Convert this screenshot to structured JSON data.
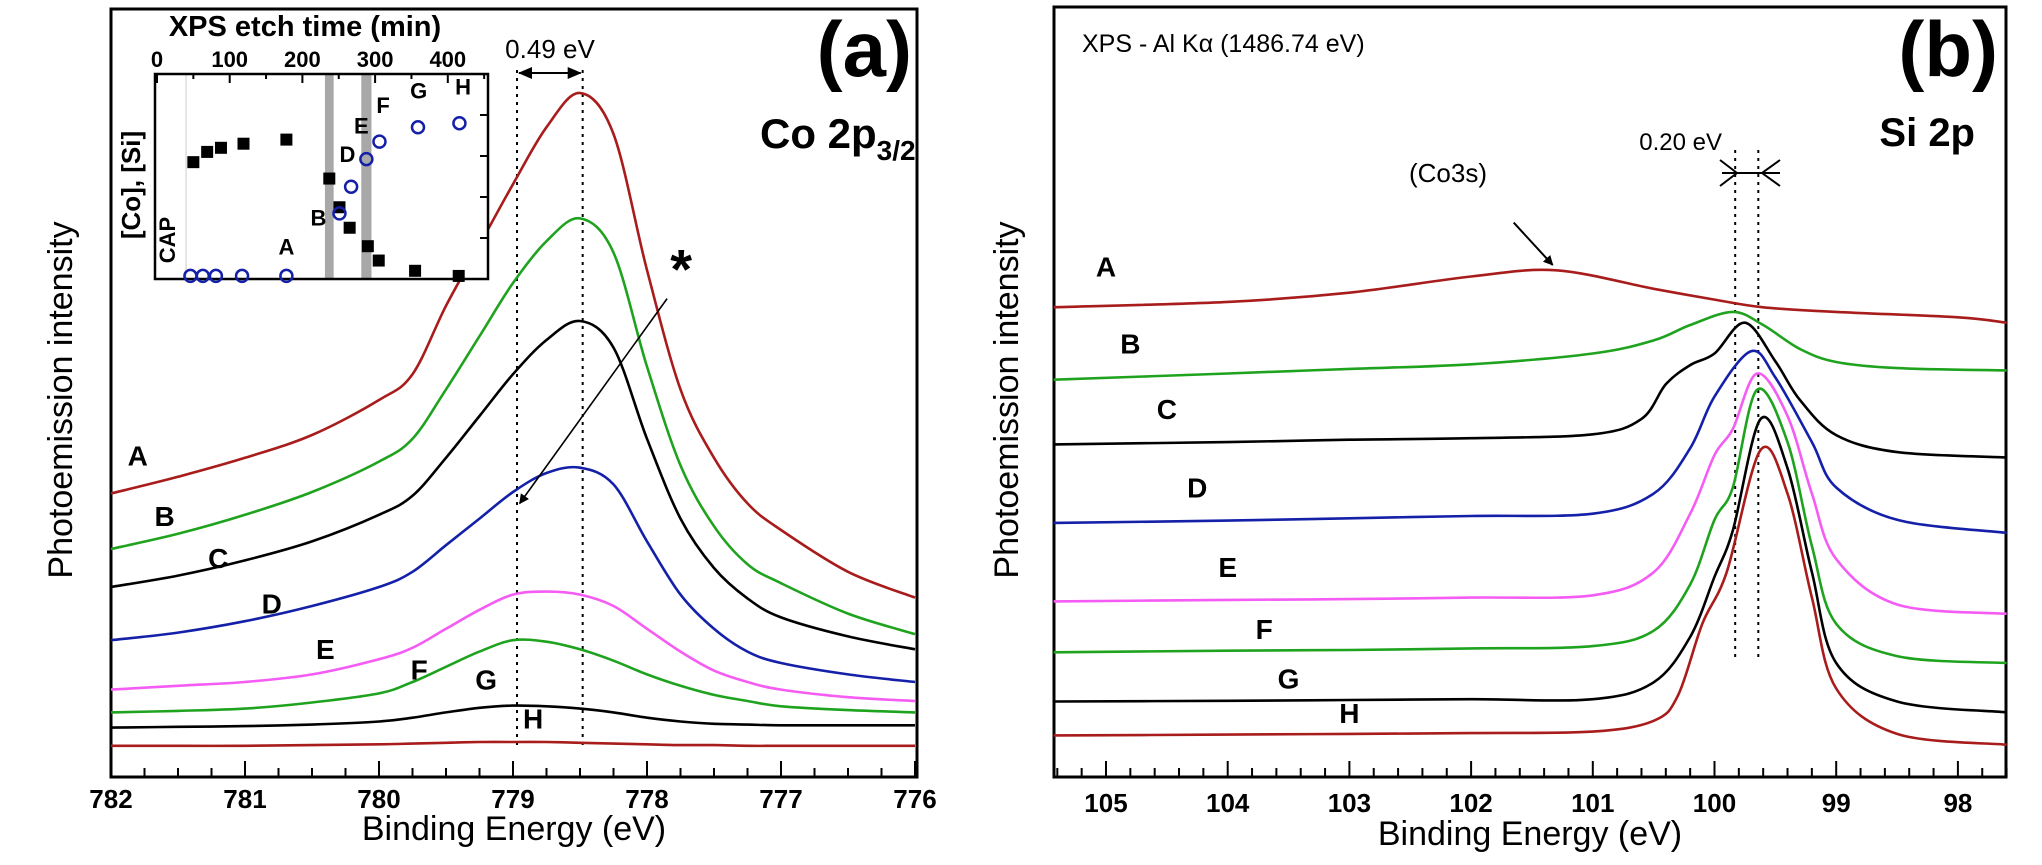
{
  "chart_data": [
    {
      "panel_label": "(a)",
      "type": "line",
      "title": "Co 2p",
      "title_sub": "3/2",
      "xlabel": "Binding Energy (eV)",
      "ylabel": "Photoemission intensity",
      "xlim": [
        782,
        776
      ],
      "x_reversed": true,
      "ylim": [
        0,
        101
      ],
      "xticks": [
        "782",
        "781",
        "780",
        "779",
        "778",
        "777",
        "776"
      ],
      "grid": false,
      "x": [
        782,
        781.5,
        781,
        780.5,
        780,
        779.75,
        779.5,
        779.25,
        779,
        778.75,
        778.5,
        778.25,
        778,
        777.75,
        777.5,
        777.25,
        777,
        776.5,
        776
      ],
      "series": [
        {
          "label": "A",
          "color": "#a81c1c",
          "label_pos": [
            781.8,
            41
          ],
          "values": [
            37.3,
            39.5,
            42,
            45,
            49.6,
            53,
            62,
            70,
            78,
            85.5,
            90,
            84.6,
            66.7,
            51,
            42,
            36,
            32.5,
            27,
            23.6
          ]
        },
        {
          "label": "B",
          "color": "#1fa31f",
          "label_pos": [
            781.6,
            33
          ],
          "values": [
            30,
            32,
            34.5,
            37.5,
            41.5,
            44.5,
            51,
            58,
            65,
            70.5,
            73.5,
            69,
            54,
            41,
            33,
            28,
            25.5,
            21.5,
            18.8
          ]
        },
        {
          "label": "C",
          "color": "#000000",
          "label_pos": [
            781.2,
            27.5
          ],
          "values": [
            25,
            26.5,
            28.5,
            31,
            34.5,
            37,
            42,
            47.5,
            53,
            57.5,
            60,
            56.5,
            44.5,
            34,
            27.5,
            23.5,
            21,
            18.5,
            16.8
          ]
        },
        {
          "label": "D",
          "color": "#1420a8",
          "label_pos": [
            780.8,
            21.5
          ],
          "values": [
            18,
            19,
            20.5,
            22.5,
            25,
            27,
            30.5,
            34,
            37.5,
            40,
            40.7,
            38.5,
            31,
            24,
            19.5,
            16.5,
            15,
            13.5,
            12.5
          ]
        },
        {
          "label": "E",
          "color": "#f45cf4",
          "label_pos": [
            780.4,
            15.5
          ],
          "values": [
            11.5,
            12,
            12.5,
            13.5,
            15.5,
            17,
            19.5,
            22,
            24,
            24.4,
            24,
            22.5,
            19.5,
            16.5,
            14,
            12.5,
            11.5,
            10.5,
            10
          ]
        },
        {
          "label": "F",
          "color": "#1fa31f",
          "label_pos": [
            779.7,
            12.8
          ],
          "values": [
            8.5,
            8.7,
            9,
            9.8,
            11,
            12.5,
            14.5,
            16.5,
            18,
            17.8,
            16.8,
            15.3,
            13.5,
            12,
            10.8,
            10,
            9.3,
            8.8,
            8.5
          ]
        },
        {
          "label": "G",
          "color": "#000000",
          "label_pos": [
            779.2,
            11.5
          ],
          "values": [
            6.5,
            6.6,
            6.7,
            6.9,
            7.3,
            7.8,
            8.5,
            9.1,
            9.4,
            9.3,
            9,
            8.5,
            7.8,
            7.3,
            7,
            6.9,
            6.8,
            6.8,
            6.8
          ]
        },
        {
          "label": "H",
          "color": "#a81c1c",
          "label_pos": [
            778.85,
            6.4
          ],
          "values": [
            4.1,
            4.1,
            4.1,
            4.2,
            4.3,
            4.4,
            4.5,
            4.6,
            4.6,
            4.6,
            4.5,
            4.4,
            4.3,
            4.2,
            4.2,
            4.1,
            4.1,
            4.1,
            4.1
          ]
        }
      ],
      "reference_lines": [
        778.97,
        778.48
      ],
      "annotations": {
        "shift_label": "0.49 eV",
        "star_label": "*",
        "star_arrow": {
          "from": [
            777.85,
            64
          ],
          "to": [
            778.95,
            36
          ]
        }
      },
      "inset": {
        "type": "scatter",
        "xlabel": "XPS etch time (min)",
        "ylabel": "[Co], [Si]",
        "xlim": [
          0,
          455
        ],
        "ylim": [
          0,
          1
        ],
        "xticks": [
          "0",
          "100",
          "200",
          "300",
          "400"
        ],
        "region_label": "CAP",
        "cap_boundary": 40,
        "bands": [
          [
            231,
            243
          ],
          [
            281,
            295
          ]
        ],
        "series": [
          {
            "name": "[Co]",
            "marker": "filled-square",
            "color": "#000000",
            "x": [
              50,
              69,
              88,
              119,
              178,
              237,
              251,
              265,
              290,
              305,
              355,
              415
            ],
            "y": [
              0.57,
              0.62,
              0.64,
              0.66,
              0.68,
              0.49,
              0.35,
              0.25,
              0.16,
              0.09,
              0.04,
              0.015
            ]
          },
          {
            "name": "[Si]",
            "marker": "open-circle",
            "color": "#1420a8",
            "x": [
              46,
              63,
              81,
              117,
              178,
              251,
              267,
              288,
              306,
              359,
              416
            ],
            "y": [
              0.015,
              0.015,
              0.015,
              0.015,
              0.015,
              0.32,
              0.45,
              0.585,
              0.67,
              0.74,
              0.76
            ]
          }
        ],
        "point_labels": [
          {
            "text": "A",
            "x": 178,
            "y": 0.12
          },
          {
            "text": "B",
            "x": 222,
            "y": 0.26
          },
          {
            "text": "D",
            "x": 262,
            "y": 0.57
          },
          {
            "text": "E",
            "x": 281,
            "y": 0.71
          },
          {
            "text": "F",
            "x": 311,
            "y": 0.81
          },
          {
            "text": "G",
            "x": 360,
            "y": 0.88
          },
          {
            "text": "H",
            "x": 421,
            "y": 0.9
          }
        ]
      }
    },
    {
      "panel_label": "(b)",
      "type": "line",
      "title": "Si 2p",
      "subtitle": "XPS - Al Kα (1486.74 eV)",
      "xlabel": "Binding Energy (eV)",
      "ylabel": "Photoemission intensity",
      "xlim": [
        105.43,
        97.6
      ],
      "x_reversed": true,
      "ylim": [
        0,
        100
      ],
      "xticks": [
        "105",
        "104",
        "103",
        "102",
        "101",
        "100",
        "99",
        "98"
      ],
      "grid": false,
      "series": [
        {
          "label": "A",
          "color": "#a81c1c",
          "label_pos": [
            105.0,
            65
          ],
          "points": [
            [
              105.43,
              61
            ],
            [
              104,
              61.7
            ],
            [
              103,
              62.9
            ],
            [
              102,
              65
            ],
            [
              101.3,
              65.8
            ],
            [
              100.5,
              63.4
            ],
            [
              100,
              62
            ],
            [
              99.6,
              61
            ],
            [
              99,
              60.4
            ],
            [
              98,
              59.7
            ],
            [
              97.6,
              59
            ]
          ]
        },
        {
          "label": "B",
          "color": "#1fa31f",
          "label_pos": [
            104.8,
            55
          ],
          "points": [
            [
              105.43,
              51.6
            ],
            [
              104,
              52.4
            ],
            [
              103,
              53
            ],
            [
              102,
              53.6
            ],
            [
              101,
              55
            ],
            [
              100.5,
              56.7
            ],
            [
              100.2,
              58.7
            ],
            [
              99.85,
              60.4
            ],
            [
              99.6,
              58.7
            ],
            [
              99.3,
              55.6
            ],
            [
              99,
              53.9
            ],
            [
              98.5,
              53.1
            ],
            [
              97.6,
              52.8
            ]
          ]
        },
        {
          "label": "C",
          "color": "#000000",
          "label_pos": [
            104.5,
            46.5
          ],
          "points": [
            [
              105.43,
              43.2
            ],
            [
              104,
              43.5
            ],
            [
              103,
              43.8
            ],
            [
              102,
              44
            ],
            [
              101,
              44.5
            ],
            [
              100.6,
              46.5
            ],
            [
              100.4,
              51
            ],
            [
              100.2,
              53.5
            ],
            [
              100,
              55
            ],
            [
              99.75,
              59
            ],
            [
              99.5,
              54
            ],
            [
              99.3,
              49
            ],
            [
              99,
              44.4
            ],
            [
              98.5,
              42.2
            ],
            [
              97.6,
              41.5
            ]
          ]
        },
        {
          "label": "D",
          "color": "#1420a8",
          "label_pos": [
            104.25,
            36.3
          ],
          "points": [
            [
              105.43,
              33
            ],
            [
              104,
              33.3
            ],
            [
              103,
              33.6
            ],
            [
              102,
              33.9
            ],
            [
              101,
              34.2
            ],
            [
              100.5,
              36.8
            ],
            [
              100.2,
              42.7
            ],
            [
              100,
              49.4
            ],
            [
              99.7,
              55.3
            ],
            [
              99.5,
              51.9
            ],
            [
              99.2,
              43.5
            ],
            [
              99,
              37.6
            ],
            [
              98.5,
              33.4
            ],
            [
              97.6,
              31.7
            ]
          ]
        },
        {
          "label": "E",
          "color": "#f45cf4",
          "label_pos": [
            104.0,
            26
          ],
          "points": [
            [
              105.43,
              22.8
            ],
            [
              104,
              23
            ],
            [
              103,
              23.1
            ],
            [
              102,
              23.3
            ],
            [
              101,
              23.6
            ],
            [
              100.5,
              26.6
            ],
            [
              100.2,
              34.2
            ],
            [
              100,
              41.8
            ],
            [
              99.85,
              45.2
            ],
            [
              99.65,
              52.4
            ],
            [
              99.4,
              46.9
            ],
            [
              99.2,
              36.8
            ],
            [
              99,
              28.3
            ],
            [
              98.5,
              22.4
            ],
            [
              97.6,
              21.2
            ]
          ]
        },
        {
          "label": "F",
          "color": "#1fa31f",
          "label_pos": [
            103.7,
            17.9
          ],
          "points": [
            [
              105.43,
              16.2
            ],
            [
              104,
              16.4
            ],
            [
              103,
              16.5
            ],
            [
              102,
              16.7
            ],
            [
              101,
              17
            ],
            [
              100.5,
              19
            ],
            [
              100.2,
              25
            ],
            [
              100,
              33.4
            ],
            [
              99.85,
              37.6
            ],
            [
              99.65,
              50.3
            ],
            [
              99.4,
              43.5
            ],
            [
              99.2,
              30
            ],
            [
              99,
              19.9
            ],
            [
              98.5,
              15.7
            ],
            [
              97.6,
              14.8
            ]
          ]
        },
        {
          "label": "G",
          "color": "#000000",
          "label_pos": [
            103.5,
            11.5
          ],
          "points": [
            [
              105.43,
              9.8
            ],
            [
              104,
              9.9
            ],
            [
              103,
              10
            ],
            [
              102,
              10.1
            ],
            [
              101,
              10.1
            ],
            [
              100.5,
              12.3
            ],
            [
              100.2,
              18.2
            ],
            [
              100,
              26
            ],
            [
              99.85,
              32
            ],
            [
              99.62,
              46.5
            ],
            [
              99.4,
              40.1
            ],
            [
              99.2,
              26.6
            ],
            [
              99,
              14.8
            ],
            [
              98.5,
              9.8
            ],
            [
              97.6,
              8.4
            ]
          ]
        },
        {
          "label": "H",
          "color": "#a81c1c",
          "label_pos": [
            103.0,
            7.0
          ],
          "points": [
            [
              105.43,
              5.4
            ],
            [
              104,
              5.5
            ],
            [
              103,
              5.6
            ],
            [
              102,
              5.7
            ],
            [
              101,
              5.9
            ],
            [
              100.5,
              7.3
            ],
            [
              100.3,
              10.6
            ],
            [
              100.1,
              19.9
            ],
            [
              99.9,
              26.6
            ],
            [
              99.62,
              42.5
            ],
            [
              99.4,
              36.8
            ],
            [
              99.2,
              23.3
            ],
            [
              99,
              11.5
            ],
            [
              98.5,
              5.6
            ],
            [
              97.6,
              4.2
            ]
          ]
        }
      ],
      "reference_lines": [
        99.83,
        99.64
      ],
      "annotations": {
        "shift_label": "0.20 eV",
        "feature_label": "(Co3s)",
        "feature_arrow": {
          "from": [
            101.65,
            72
          ],
          "to": [
            101.33,
            66.5
          ]
        }
      }
    }
  ]
}
